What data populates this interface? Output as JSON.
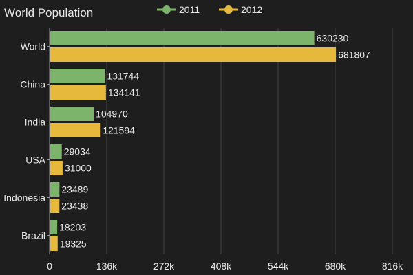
{
  "chart_data": {
    "type": "bar",
    "orientation": "horizontal",
    "title": "World Population",
    "categories": [
      "World",
      "China",
      "India",
      "USA",
      "Indonesia",
      "Brazil"
    ],
    "series": [
      {
        "name": "2011",
        "color": "#7db46c",
        "values": [
          630230,
          131744,
          104970,
          29034,
          23489,
          18203
        ]
      },
      {
        "name": "2012",
        "color": "#e6b83b",
        "values": [
          681807,
          134141,
          121594,
          31000,
          23438,
          19325
        ]
      }
    ],
    "xlim": [
      0,
      816000
    ],
    "xticks": [
      0,
      136000,
      272000,
      408000,
      544000,
      680000,
      816000
    ],
    "xtick_labels": [
      "0",
      "136k",
      "272k",
      "408k",
      "544k",
      "680k",
      "816k"
    ],
    "grid": true,
    "legend_position": "top-center",
    "data_labels": true
  },
  "colors": {
    "background": "#1f1e1f",
    "text": "#e8e8e8",
    "grid": "#444444",
    "axis": "#9a9a9a"
  }
}
